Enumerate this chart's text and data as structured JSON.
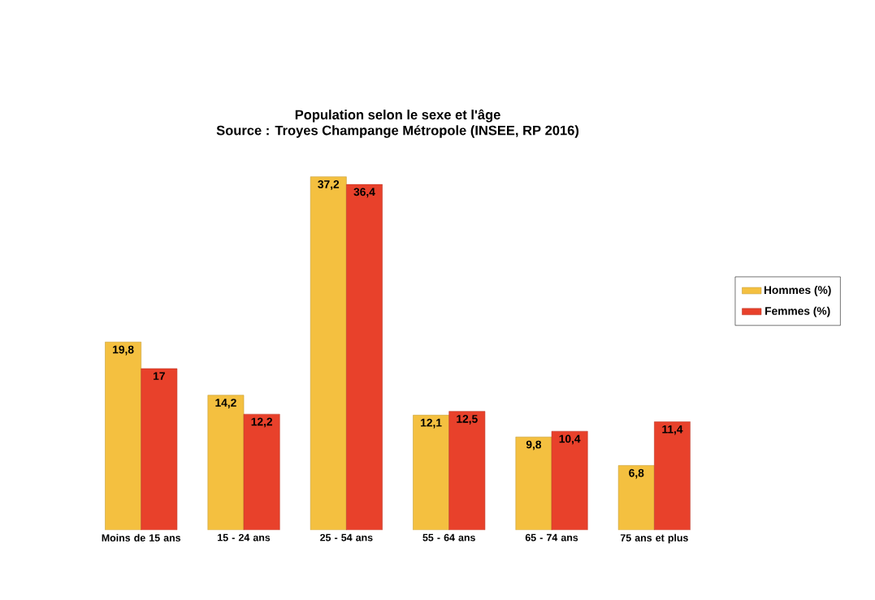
{
  "chart_data": {
    "type": "bar",
    "title": "Population selon le sexe et l'âge",
    "subtitle": "Source : Troyes Champange Métropole (INSEE, RP 2016)",
    "categories": [
      "Moins de 15 ans",
      "15 - 24 ans",
      "25 - 54 ans",
      "55 - 64 ans",
      "65 - 74 ans",
      "75 ans et plus"
    ],
    "series": [
      {
        "name": "Hommes (%)",
        "color": "#f4c040",
        "values": [
          19.8,
          14.2,
          37.2,
          12.1,
          9.8,
          6.8
        ],
        "value_labels": [
          "19,8",
          "14,2",
          "37,2",
          "12,1",
          "9,8",
          "6,8"
        ]
      },
      {
        "name": "Femmes (%)",
        "color": "#e8412b",
        "values": [
          17,
          12.2,
          36.4,
          12.5,
          10.4,
          11.4
        ],
        "value_labels": [
          "17",
          "12,2",
          "36,4",
          "12,5",
          "10,4",
          "11,4"
        ]
      }
    ],
    "legend": "right"
  }
}
